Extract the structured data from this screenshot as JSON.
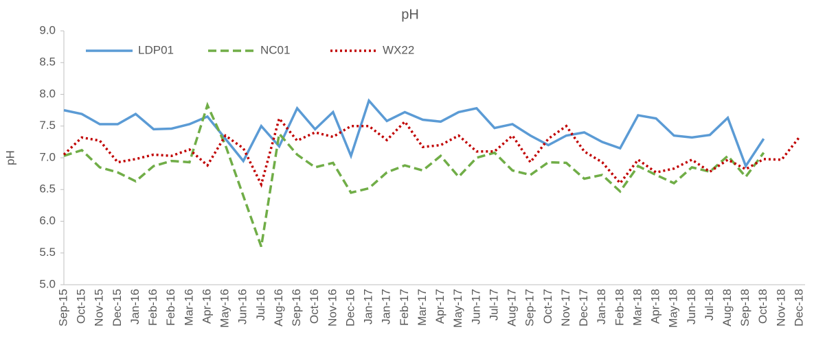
{
  "chart_data": {
    "type": "line",
    "title": "pH",
    "y_label": "pH",
    "categories": [
      "Sep-15",
      "Oct-15",
      "Nov-15",
      "Dec-15",
      "Jan-16",
      "Feb-16",
      "Feb-16",
      "Mar-16",
      "Apr-16",
      "May-16",
      "Jun-16",
      "Jul-16",
      "Aug-16",
      "Sep-16",
      "Oct-16",
      "Nov-16",
      "Dec-16",
      "Jan-17",
      "Jan-17",
      "Feb-17",
      "Mar-17",
      "Apr-17",
      "May-17",
      "Jun-17",
      "Jul-17",
      "Aug-17",
      "Sep-17",
      "Oct-17",
      "Nov-17",
      "Dec-17",
      "Jan-18",
      "Feb-18",
      "Mar-18",
      "Apr-18",
      "May-18",
      "Jun-18",
      "Jul-18",
      "Aug-18",
      "Sep-18",
      "Oct-18",
      "Nov-18",
      "Dec-18"
    ],
    "series": [
      {
        "name": "LDP01",
        "color": "#5b9bd5",
        "dash": "solid",
        "values": [
          7.75,
          7.69,
          7.53,
          7.53,
          7.69,
          7.45,
          7.46,
          7.53,
          7.65,
          7.3,
          6.95,
          7.5,
          7.18,
          7.78,
          7.45,
          7.72,
          7.03,
          7.9,
          7.58,
          7.72,
          7.6,
          7.57,
          7.72,
          7.78,
          7.47,
          7.53,
          7.35,
          7.2,
          7.35,
          7.4,
          7.25,
          7.15,
          7.67,
          7.62,
          7.35,
          7.32,
          7.36,
          7.63,
          6.87,
          7.3,
          null,
          null
        ]
      },
      {
        "name": "NC01",
        "color": "#70ad47",
        "dash": "dashed",
        "values": [
          7.03,
          7.12,
          6.85,
          6.77,
          6.63,
          6.87,
          6.95,
          6.93,
          7.83,
          7.2,
          6.4,
          5.6,
          7.38,
          7.05,
          6.85,
          6.92,
          6.45,
          6.52,
          6.77,
          6.88,
          6.8,
          7.03,
          6.7,
          7.0,
          7.08,
          6.8,
          6.73,
          6.93,
          6.92,
          6.67,
          6.73,
          6.47,
          6.87,
          6.73,
          6.6,
          6.85,
          6.78,
          7.03,
          6.7,
          7.08,
          null,
          null
        ]
      },
      {
        "name": "WX22",
        "color": "#c00000",
        "dash": "dotted",
        "values": [
          7.05,
          7.32,
          7.27,
          6.93,
          6.98,
          7.05,
          7.03,
          7.13,
          6.88,
          7.35,
          7.15,
          6.58,
          7.62,
          7.27,
          7.4,
          7.33,
          7.5,
          7.5,
          7.28,
          7.57,
          7.17,
          7.2,
          7.35,
          7.1,
          7.1,
          7.35,
          6.93,
          7.3,
          7.5,
          7.1,
          6.93,
          6.6,
          6.97,
          6.77,
          6.83,
          6.97,
          6.78,
          6.97,
          6.82,
          6.98,
          6.97,
          7.33
        ]
      }
    ],
    "ylim": [
      5,
      9
    ],
    "yticks": [
      {
        "value": 5,
        "label": "5.0"
      },
      {
        "value": 5.5,
        "label": "5.5"
      },
      {
        "value": 6,
        "label": "6.0"
      },
      {
        "value": 6.5,
        "label": "6.5"
      },
      {
        "value": 7,
        "label": "7.0"
      },
      {
        "value": 7.5,
        "label": "7.5"
      },
      {
        "value": 8,
        "label": "8.0"
      },
      {
        "value": 8.5,
        "label": "8.5"
      },
      {
        "value": 9,
        "label": "9.0"
      }
    ],
    "grid": false,
    "legend": "top-left"
  }
}
